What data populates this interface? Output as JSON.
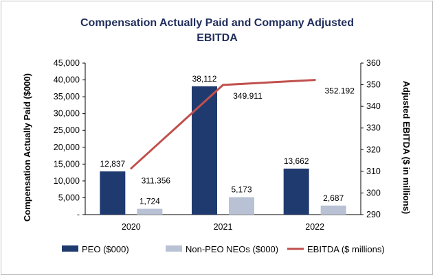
{
  "chart_data": {
    "type": "bar",
    "title_lines": [
      "Compensation Actually Paid and Company Adjusted",
      "EBITDA"
    ],
    "categories": [
      "2020",
      "2021",
      "2022"
    ],
    "series": [
      {
        "name": "PEO ($000)",
        "kind": "bar",
        "axis": "left",
        "color": "#1f3a6e",
        "values": [
          12837,
          38112,
          13662
        ],
        "labels": [
          "12,837",
          "38,112",
          "13,662"
        ]
      },
      {
        "name": "Non-PEO NEOs ($000)",
        "kind": "bar",
        "axis": "left",
        "color": "#b8c2d4",
        "values": [
          1724,
          5173,
          2687
        ],
        "labels": [
          "1,724",
          "5,173",
          "2,687"
        ]
      },
      {
        "name": "EBITDA ($ millions)",
        "kind": "line",
        "axis": "right",
        "color": "#c0504d",
        "values": [
          311.356,
          349.911,
          352.192
        ],
        "labels": [
          "311.356",
          "349.911",
          "352.192"
        ]
      }
    ],
    "ylabel": "Compensation Actually Paid ($000)",
    "y2label": "Adjusted EBITDA ($ in millions)",
    "ylim": [
      0,
      45000
    ],
    "y2lim": [
      290,
      360
    ],
    "yticks": [
      0,
      5000,
      10000,
      15000,
      20000,
      25000,
      30000,
      35000,
      40000,
      45000
    ],
    "ytick_labels": [
      "-",
      "5,000",
      "10,000",
      "15,000",
      "20,000",
      "25,000",
      "30,000",
      "35,000",
      "40,000",
      "45,000"
    ],
    "y2ticks": [
      290,
      300,
      310,
      320,
      330,
      340,
      350,
      360
    ],
    "y2tick_labels": [
      "290",
      "300",
      "310",
      "320",
      "330",
      "340",
      "350",
      "360"
    ],
    "legend_position": "bottom",
    "grid": false
  }
}
